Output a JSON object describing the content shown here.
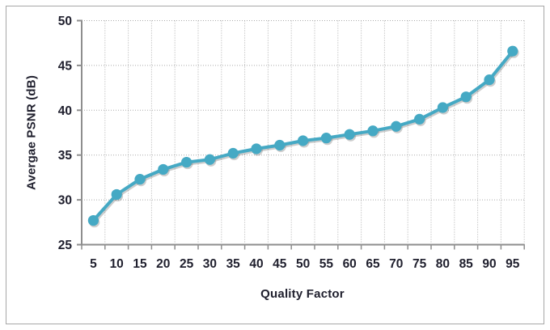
{
  "chart_data": {
    "type": "line",
    "title": "",
    "xlabel": "Quality Factor",
    "ylabel": "Avergae PSNR (dB)",
    "x": [
      5,
      10,
      15,
      20,
      25,
      30,
      35,
      40,
      45,
      50,
      55,
      60,
      65,
      70,
      75,
      80,
      85,
      90,
      95
    ],
    "values": [
      27.7,
      30.6,
      32.3,
      33.4,
      34.2,
      34.5,
      35.2,
      35.7,
      36.1,
      36.6,
      36.9,
      37.3,
      37.7,
      38.2,
      39.0,
      40.3,
      41.5,
      43.4,
      46.6
    ],
    "ylim": [
      25,
      50
    ],
    "y_ticks": [
      25,
      30,
      35,
      40,
      45,
      50
    ],
    "grid": "dotted-both",
    "legend": "none",
    "marker": "circle",
    "colors": {
      "line": "#45a9c4",
      "marker": "#45a9c4",
      "shadow": "rgba(90,90,90,0.30)",
      "axis": "#8e8e8e",
      "gridline": "#ababab",
      "tick_text": "#20202e",
      "frame_border": "#a6a6a6",
      "background": "#ffffff"
    }
  }
}
